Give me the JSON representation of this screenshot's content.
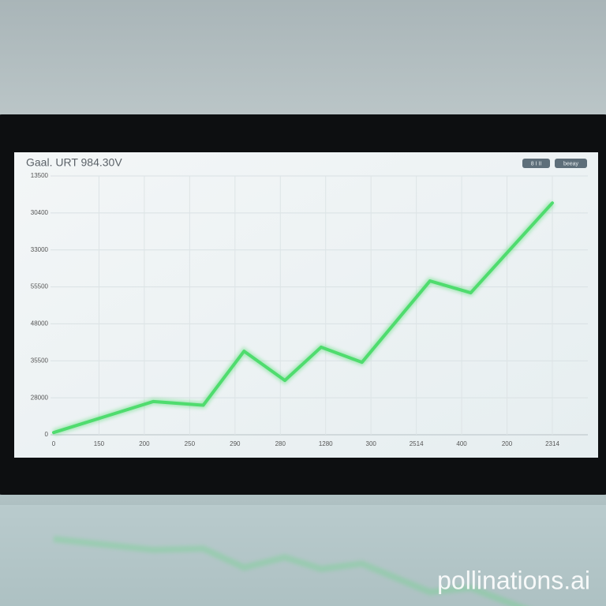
{
  "chart_data": {
    "type": "line",
    "title": "Gaal. URT 984.30V",
    "buttons": [
      "8 I II",
      "beeay"
    ],
    "x_labels": [
      "0",
      "150",
      "200",
      "250",
      "290",
      "280",
      "1280",
      "300",
      "2514",
      "400",
      "200",
      "2314"
    ],
    "y_labels": [
      "0",
      "28000",
      "35500",
      "48000",
      "55500",
      "33000",
      "30400",
      "13500"
    ],
    "xlim": [
      0,
      11
    ],
    "ylim": [
      0,
      7
    ],
    "x": [
      0,
      2.2,
      3.3,
      4.2,
      5.1,
      5.9,
      6.8,
      8.3,
      9.2,
      11
    ],
    "series": [
      {
        "color": "#4fdc6e",
        "values": [
          0.06,
          0.9,
          0.8,
          2.26,
          1.47,
          2.37,
          1.96,
          4.16,
          3.84,
          6.27
        ]
      }
    ],
    "grid": true,
    "watermark": "pollinations.ai"
  }
}
